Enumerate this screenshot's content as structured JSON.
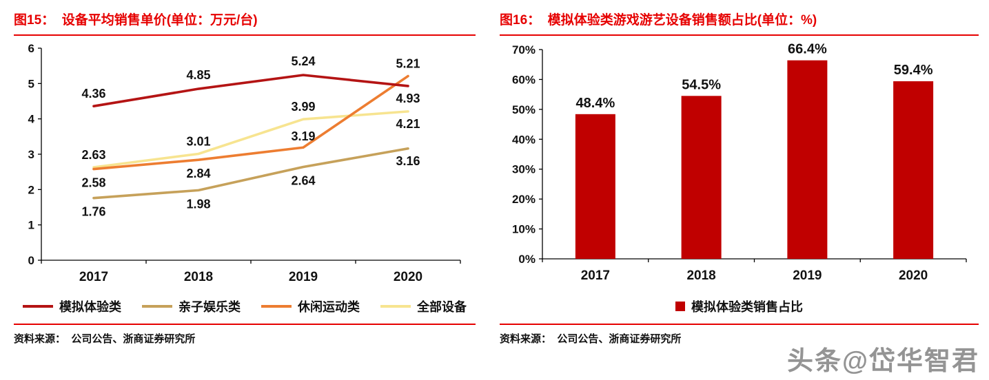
{
  "page": {
    "watermark": "头条@岱华智君"
  },
  "left_panel": {
    "title": "图15：  设备平均销售单价(单位：万元/台)",
    "source": "资料来源：  公司公告、浙商证券研究所"
  },
  "right_panel": {
    "title": "图16：  模拟体验类游戏游艺设备销售额占比(单位：%)",
    "source": "资料来源：  公司公告、浙商证券研究所"
  },
  "chart_data": [
    {
      "type": "line",
      "title": "设备平均销售单价(单位：万元/台)",
      "categories": [
        "2017",
        "2018",
        "2019",
        "2020"
      ],
      "series": [
        {
          "name": "模拟体验类",
          "color": "#b41414",
          "values": [
            4.36,
            4.85,
            5.24,
            4.93
          ]
        },
        {
          "name": "亲子娱乐类",
          "color": "#c6a15a",
          "values": [
            1.76,
            1.98,
            2.64,
            3.16
          ]
        },
        {
          "name": "休闲运动类",
          "color": "#ed7d31",
          "values": [
            2.58,
            2.84,
            3.19,
            5.21
          ]
        },
        {
          "name": "全部设备",
          "color": "#f7e490",
          "values": [
            2.63,
            3.01,
            3.99,
            4.21
          ]
        }
      ],
      "xlabel": "",
      "ylabel": "",
      "ylim": [
        0,
        6
      ],
      "ytick_step": 1,
      "grid": false,
      "legend_position": "bottom"
    },
    {
      "type": "bar",
      "title": "模拟体验类游戏游艺设备销售额占比(单位：%)",
      "categories": [
        "2017",
        "2018",
        "2019",
        "2020"
      ],
      "values": [
        48.4,
        54.5,
        66.4,
        59.4
      ],
      "labels": [
        "48.4%",
        "54.5%",
        "66.4%",
        "59.4%"
      ],
      "bar_color": "#c00000",
      "legend": "模拟体验类销售占比",
      "xlabel": "",
      "ylabel": "",
      "ylim": [
        0,
        70
      ],
      "ytick_step": 10,
      "ytick_labels": [
        "0%",
        "10%",
        "20%",
        "30%",
        "40%",
        "50%",
        "60%",
        "70%"
      ],
      "grid": false,
      "legend_position": "bottom"
    }
  ]
}
